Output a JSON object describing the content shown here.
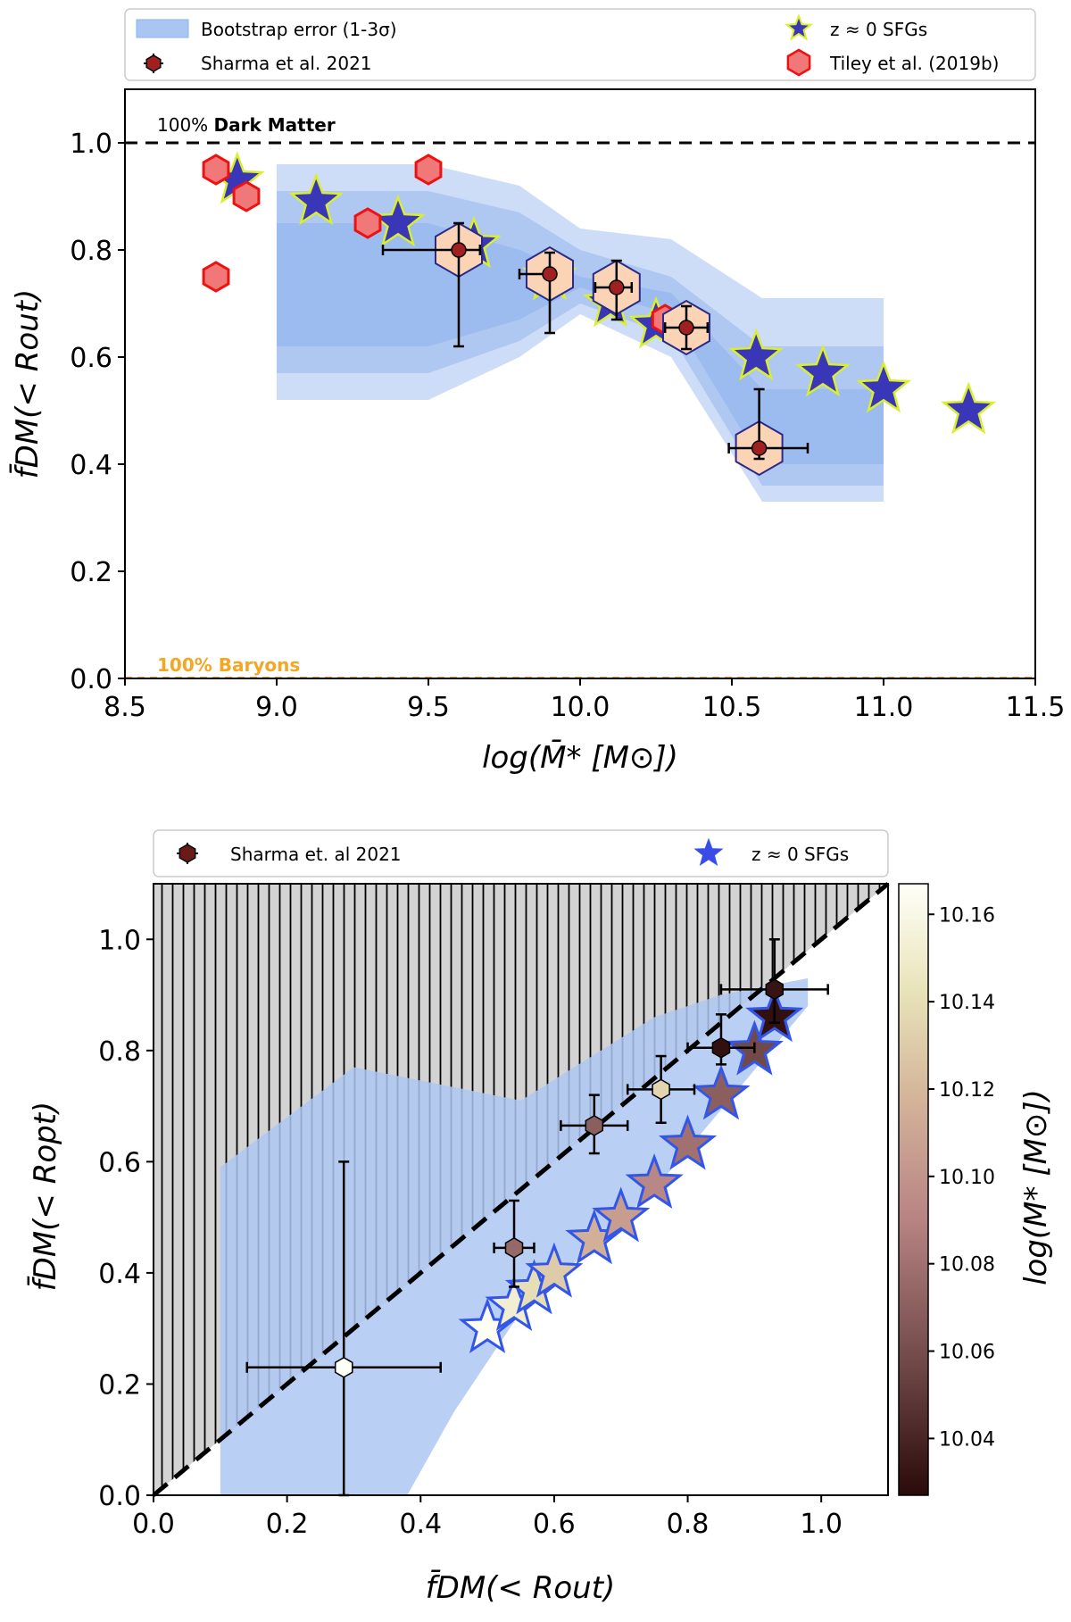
{
  "chart_data": [
    {
      "type": "scatter",
      "panel": "top",
      "xlabel": "log(M̄* [M⊙])",
      "ylabel": "f̄DM(< Rout)",
      "xlim": [
        8.5,
        11.5
      ],
      "ylim": [
        0.0,
        1.1
      ],
      "xticks": [
        "8.5",
        "9.0",
        "9.5",
        "10.0",
        "10.5",
        "11.0",
        "11.5"
      ],
      "yticks": [
        "0.0",
        "0.2",
        "0.4",
        "0.6",
        "0.8",
        "1.0"
      ],
      "legend": {
        "position": "top",
        "entries": [
          "Bootstrap error (1-3σ)",
          "Sharma et al. 2021",
          "z ≈ 0 SFGs",
          "Tiley et al. (2019b)"
        ]
      },
      "annotations": {
        "dark_matter": {
          "prefix": "100%",
          "bold": "Dark Matter"
        },
        "baryons": {
          "text": "100% Baryons"
        },
        "dm_line_y": 1.0
      },
      "bands": [
        {
          "name": "3-sigma",
          "x": [
            9.0,
            9.5,
            9.8,
            10.0,
            10.3,
            10.6,
            11.0
          ],
          "lower": [
            0.52,
            0.52,
            0.6,
            0.68,
            0.6,
            0.33,
            0.33
          ],
          "upper": [
            0.96,
            0.96,
            0.92,
            0.84,
            0.82,
            0.71,
            0.71
          ]
        },
        {
          "name": "2-sigma",
          "x": [
            9.0,
            9.5,
            9.8,
            10.0,
            10.3,
            10.6,
            11.0
          ],
          "lower": [
            0.57,
            0.57,
            0.63,
            0.7,
            0.64,
            0.36,
            0.36
          ],
          "upper": [
            0.91,
            0.91,
            0.87,
            0.8,
            0.75,
            0.62,
            0.62
          ]
        },
        {
          "name": "1-sigma",
          "x": [
            9.0,
            9.5,
            9.8,
            10.0,
            10.3,
            10.6,
            11.0
          ],
          "lower": [
            0.62,
            0.62,
            0.67,
            0.73,
            0.68,
            0.4,
            0.4
          ],
          "upper": [
            0.85,
            0.85,
            0.8,
            0.75,
            0.72,
            0.54,
            0.54
          ]
        }
      ],
      "series": [
        {
          "name": "z ≈ 0 SFGs",
          "x": [
            8.87,
            9.13,
            9.4,
            9.65,
            9.9,
            10.1,
            10.25,
            10.58,
            10.8,
            11.0,
            11.28
          ],
          "y": [
            0.93,
            0.89,
            0.85,
            0.81,
            0.75,
            0.7,
            0.66,
            0.6,
            0.57,
            0.54,
            0.5
          ]
        },
        {
          "name": "Tiley et al. (2019b)",
          "x": [
            8.8,
            8.9,
            8.8,
            9.3,
            9.5,
            10.28
          ],
          "y": [
            0.95,
            0.9,
            0.75,
            0.85,
            0.95,
            0.67
          ]
        },
        {
          "name": "Sharma et al. 2021",
          "x": [
            9.6,
            9.9,
            10.12,
            10.35,
            10.59
          ],
          "y": [
            0.8,
            0.755,
            0.73,
            0.655,
            0.43
          ],
          "xerr_low": [
            0.25,
            0.1,
            0.07,
            0.07,
            0.1
          ],
          "xerr_high": [
            0.07,
            0.0,
            0.05,
            0.07,
            0.16
          ],
          "yerr_low": [
            0.18,
            0.11,
            0.06,
            0.04,
            0.02
          ],
          "yerr_high": [
            0.05,
            0.04,
            0.05,
            0.04,
            0.11
          ]
        }
      ]
    },
    {
      "type": "scatter",
      "panel": "bottom",
      "xlabel": "f̄DM(< Rout)",
      "ylabel": "f̄DM(< Ropt)",
      "xlim": [
        0.0,
        1.1
      ],
      "ylim": [
        0.0,
        1.1
      ],
      "xticks": [
        "0.0",
        "0.2",
        "0.4",
        "0.6",
        "0.8",
        "1.0"
      ],
      "yticks": [
        "0.0",
        "0.2",
        "0.4",
        "0.6",
        "0.8",
        "1.0"
      ],
      "legend": {
        "position": "top",
        "entries": [
          "Sharma et. al 2021",
          "z ≈ 0 SFGs"
        ]
      },
      "colorbar": {
        "label": "log(M* [M⊙])",
        "range": [
          10.027,
          10.167
        ],
        "ticks": [
          "10.04",
          "10.06",
          "10.08",
          "10.10",
          "10.12",
          "10.14",
          "10.16"
        ]
      },
      "one_to_one_line": [
        [
          0.0,
          0.0
        ],
        [
          1.1,
          1.1
        ]
      ],
      "band": {
        "x": [
          0.1,
          0.3,
          0.55,
          0.75,
          0.85,
          0.98,
          0.98,
          0.75,
          0.55,
          0.45,
          0.38,
          0.1
        ],
        "y": [
          0.59,
          0.77,
          0.71,
          0.86,
          0.9,
          0.93,
          0.88,
          0.55,
          0.33,
          0.15,
          0.0,
          0.0
        ]
      },
      "series": [
        {
          "name": "z ≈ 0 SFGs",
          "x": [
            0.5,
            0.54,
            0.57,
            0.6,
            0.66,
            0.7,
            0.75,
            0.8,
            0.85,
            0.9,
            0.93
          ],
          "y": [
            0.3,
            0.34,
            0.37,
            0.4,
            0.46,
            0.5,
            0.56,
            0.63,
            0.72,
            0.8,
            0.86
          ],
          "color_value": [
            10.165,
            10.152,
            10.14,
            10.13,
            10.115,
            10.105,
            10.092,
            10.08,
            10.07,
            10.058,
            10.03
          ]
        },
        {
          "name": "Sharma et. al 2021",
          "x": [
            0.285,
            0.54,
            0.66,
            0.76,
            0.85,
            0.93
          ],
          "y": [
            0.23,
            0.445,
            0.665,
            0.73,
            0.805,
            0.91
          ],
          "xerr": [
            0.145,
            0.03,
            0.05,
            0.05,
            0.05,
            0.08
          ],
          "yerr_low": [
            0.23,
            0.07,
            0.05,
            0.06,
            0.03,
            0.06
          ],
          "yerr_high": [
            0.37,
            0.085,
            0.055,
            0.06,
            0.06,
            0.09
          ],
          "color_value": [
            10.167,
            10.075,
            10.07,
            10.135,
            10.03,
            10.032
          ]
        }
      ]
    }
  ]
}
